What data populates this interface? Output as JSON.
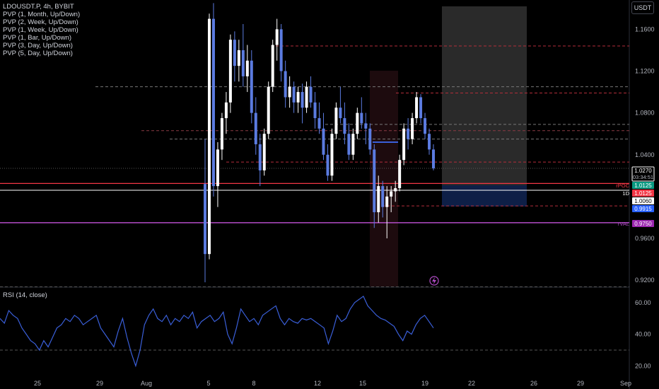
{
  "legend": {
    "symbol": "LDOUSDT.P, 4h, BYBIT",
    "indicators": [
      "PVP (1, Month, Up/Down)",
      "PVP (2, Week, Up/Down)",
      "PVP (1, Week, Up/Down)",
      "PVP (1, Bar, Up/Down)",
      "PVP (3, Day, Up/Down)",
      "PVP (5, Day, Up/Down)"
    ]
  },
  "currency_button": "USDT",
  "rsi_label": "RSI (14, close)",
  "colors": {
    "background": "#000000",
    "up_candle": "#ffffff",
    "down_candle": "#5b7be0",
    "rsi_line": "#3a5fd9",
    "poc_line": "#f23645",
    "val_line": "#b24cc7",
    "white_line": "#ffffff"
  },
  "chart_data": [
    {
      "type": "candlestick",
      "price_axis_ticks": [
        "1.1600",
        "1.1200",
        "1.0800",
        "1.0400",
        "0.9600",
        "0.9200"
      ],
      "ylim": [
        0.914,
        1.188
      ],
      "time_axis_ticks": [
        "25",
        "29",
        "Aug",
        "5",
        "8",
        "12",
        "15",
        "19",
        "22",
        "26",
        "29",
        "Sep"
      ],
      "price_badges": [
        {
          "label": "",
          "value": "1.0270",
          "sub": "03:34:51",
          "style": "current"
        },
        {
          "label": "rPOC",
          "value": "1.0125",
          "style": "green"
        },
        {
          "label": "1D",
          "value": "1.0125",
          "style": "red"
        },
        {
          "label": "",
          "value": "1.0060",
          "style": "white"
        },
        {
          "label": "",
          "value": "0.9915",
          "style": "blue"
        },
        {
          "label": "rVAL",
          "value": "0.9750",
          "style": "purple"
        }
      ],
      "levels": {
        "poc": 1.0125,
        "white": 1.006,
        "val": 0.975,
        "dashed": [
          1.144,
          1.099,
          1.063,
          1.055,
          1.033,
          1.069,
          1.105,
          0.991
        ]
      },
      "candles": [
        [
          1.012,
          1.055,
          0.918,
          0.945
        ],
        [
          0.945,
          1.175,
          0.94,
          1.17
        ],
        [
          1.17,
          1.185,
          1.0,
          1.01
        ],
        [
          1.01,
          1.052,
          0.99,
          1.045
        ],
        [
          1.045,
          1.08,
          1.035,
          1.075
        ],
        [
          1.075,
          1.1,
          1.06,
          1.09
        ],
        [
          1.09,
          1.155,
          1.08,
          1.15
        ],
        [
          1.15,
          1.158,
          1.11,
          1.125
        ],
        [
          1.125,
          1.15,
          1.11,
          1.14
        ],
        [
          1.14,
          1.165,
          1.105,
          1.115
        ],
        [
          1.115,
          1.145,
          1.1,
          1.13
        ],
        [
          1.13,
          1.14,
          1.07,
          1.08
        ],
        [
          1.08,
          1.095,
          1.04,
          1.05
        ],
        [
          1.05,
          1.06,
          1.01,
          1.025
        ],
        [
          1.025,
          1.065,
          1.02,
          1.06
        ],
        [
          1.06,
          1.11,
          1.055,
          1.105
        ],
        [
          1.105,
          1.15,
          1.1,
          1.145
        ],
        [
          1.145,
          1.17,
          1.13,
          1.16
        ],
        [
          1.16,
          1.165,
          1.11,
          1.12
        ],
        [
          1.12,
          1.13,
          1.085,
          1.095
        ],
        [
          1.095,
          1.115,
          1.085,
          1.105
        ],
        [
          1.105,
          1.11,
          1.08,
          1.09
        ],
        [
          1.09,
          1.105,
          1.08,
          1.1
        ],
        [
          1.1,
          1.108,
          1.07,
          1.085
        ],
        [
          1.085,
          1.11,
          1.08,
          1.105
        ],
        [
          1.105,
          1.115,
          1.085,
          1.09
        ],
        [
          1.09,
          1.1,
          1.065,
          1.075
        ],
        [
          1.075,
          1.09,
          1.06,
          1.065
        ],
        [
          1.065,
          1.08,
          1.035,
          1.04
        ],
        [
          1.04,
          1.05,
          1.015,
          1.02
        ],
        [
          1.02,
          1.065,
          1.015,
          1.06
        ],
        [
          1.06,
          1.09,
          1.055,
          1.085
        ],
        [
          1.085,
          1.105,
          1.07,
          1.075
        ],
        [
          1.075,
          1.09,
          1.05,
          1.06
        ],
        [
          1.06,
          1.07,
          1.035,
          1.04
        ],
        [
          1.04,
          1.065,
          1.035,
          1.06
        ],
        [
          1.06,
          1.085,
          1.055,
          1.08
        ],
        [
          1.08,
          1.095,
          1.065,
          1.07
        ],
        [
          1.07,
          1.08,
          1.05,
          1.065
        ],
        [
          1.065,
          1.07,
          1.04,
          1.045
        ],
        [
          1.045,
          1.05,
          0.97,
          0.985
        ],
        [
          0.985,
          1.02,
          0.975,
          1.01
        ],
        [
          1.01,
          1.015,
          0.98,
          0.99
        ],
        [
          0.99,
          1.01,
          0.96,
          1.0
        ],
        [
          1.0,
          1.01,
          0.985,
          1.005
        ],
        [
          1.005,
          1.015,
          0.995,
          1.008
        ],
        [
          1.008,
          1.04,
          1.005,
          1.035
        ],
        [
          1.035,
          1.07,
          1.03,
          1.065
        ],
        [
          1.065,
          1.075,
          1.045,
          1.055
        ],
        [
          1.055,
          1.08,
          1.05,
          1.075
        ],
        [
          1.075,
          1.1,
          1.07,
          1.095
        ],
        [
          1.095,
          1.098,
          1.07,
          1.075
        ],
        [
          1.075,
          1.08,
          1.055,
          1.06
        ],
        [
          1.06,
          1.065,
          1.04,
          1.045
        ],
        [
          1.045,
          1.05,
          1.025,
          1.027
        ]
      ]
    },
    {
      "type": "line",
      "name": "RSI (14, close)",
      "axis_ticks": [
        "60.00",
        "40.00",
        "20.00"
      ],
      "ylim": [
        13,
        68
      ],
      "bands": [
        70,
        30
      ],
      "values": [
        50,
        47,
        55,
        52,
        50,
        44,
        40,
        36,
        34,
        30,
        36,
        32,
        38,
        44,
        46,
        50,
        48,
        52,
        50,
        46,
        48,
        50,
        52,
        44,
        40,
        36,
        32,
        42,
        50,
        38,
        28,
        20,
        30,
        46,
        52,
        56,
        50,
        48,
        52,
        46,
        50,
        48,
        52,
        50,
        54,
        44,
        48,
        50,
        52,
        48,
        50,
        54,
        40,
        34,
        44,
        56,
        52,
        48,
        50,
        46,
        52,
        54,
        56,
        58,
        50,
        46,
        50,
        48,
        47,
        50,
        49,
        50,
        48,
        46,
        44,
        34,
        42,
        52,
        48,
        50,
        56,
        60,
        62,
        64,
        58,
        55,
        52,
        50,
        49,
        47,
        45,
        40,
        36,
        42,
        40,
        46,
        50,
        52,
        48,
        44
      ]
    }
  ]
}
